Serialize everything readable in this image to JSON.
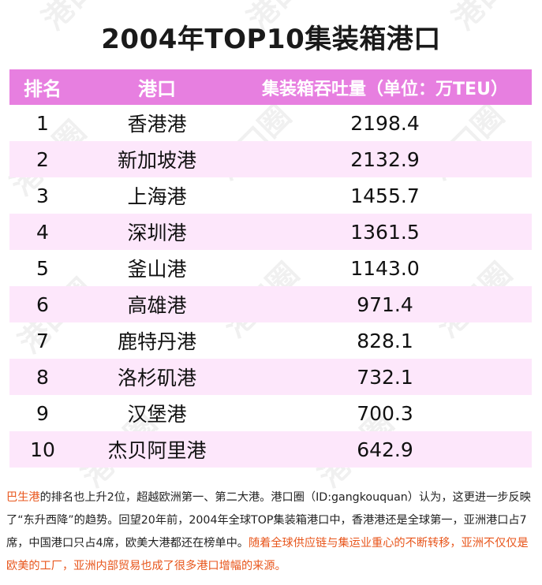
{
  "title": "2004年TOP10集装箱港口",
  "table": {
    "headers": [
      "排名",
      "港口",
      "集装箱吞吐量（单位：万TEU）"
    ],
    "rows": [
      {
        "rank": "1",
        "port": "香港港",
        "value": "2198.4"
      },
      {
        "rank": "2",
        "port": "新加坡港",
        "value": "2132.9"
      },
      {
        "rank": "3",
        "port": "上海港",
        "value": "1455.7"
      },
      {
        "rank": "4",
        "port": "深圳港",
        "value": "1361.5"
      },
      {
        "rank": "5",
        "port": "釜山港",
        "value": "1143.0"
      },
      {
        "rank": "6",
        "port": "高雄港",
        "value": "971.4"
      },
      {
        "rank": "7",
        "port": "鹿特丹港",
        "value": "828.1"
      },
      {
        "rank": "8",
        "port": "洛杉矶港",
        "value": "732.1"
      },
      {
        "rank": "9",
        "port": "汉堡港",
        "value": "700.3"
      },
      {
        "rank": "10",
        "port": "杰贝阿里港",
        "value": "642.9"
      }
    ]
  },
  "note": {
    "lead": "巴生港",
    "body": "的排名也上升2位，超越欧洲第一、第二大港。港口圈（ID:gangkouquan）认为，这更进一步反映了“东升西降”的趋势。回望20年前，2004年全球TOP集装箱港口中，香港港还是全球第一，亚洲港口占7席，中国港口只占4席，欧美大港都还在榜单中。",
    "highlight": "随着全球供应链与集运业重心的不断转移，亚洲不仅仅是欧美的工厂，亚洲内部贸易也成了很多港口增幅的来源。"
  },
  "watermark": {
    "text": "港口圈",
    "color": "#f0f0f0"
  },
  "colors": {
    "header_bg": "#e77fe0",
    "alt_row_bg": "#fde7fb",
    "highlight": "#e8561c"
  }
}
